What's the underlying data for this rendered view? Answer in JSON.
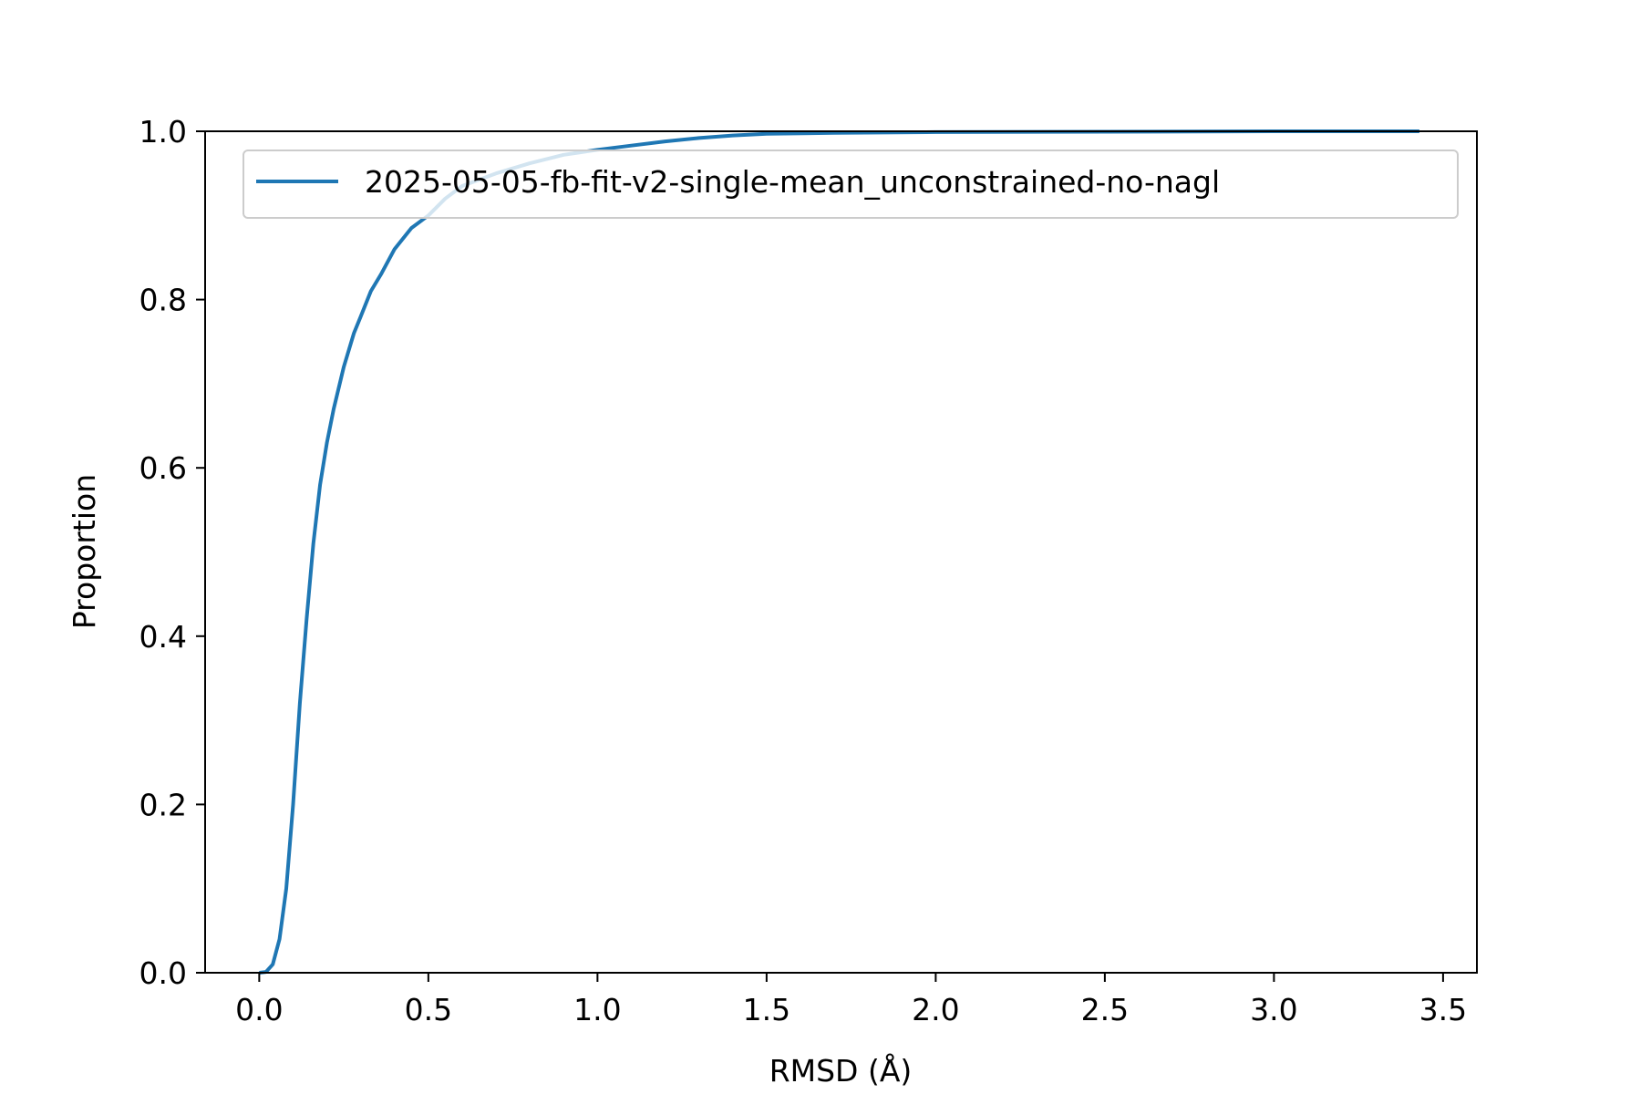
{
  "chart_data": {
    "type": "line",
    "title": "",
    "xlabel": "RMSD (Å)",
    "ylabel": "Proportion",
    "xlim": [
      -0.16,
      3.6
    ],
    "ylim": [
      0.0,
      1.0
    ],
    "xticks": [
      0.0,
      0.5,
      1.0,
      1.5,
      2.0,
      2.5,
      3.0,
      3.5
    ],
    "xtick_labels": [
      "0.0",
      "0.5",
      "1.0",
      "1.5",
      "2.0",
      "2.5",
      "3.0",
      "3.5"
    ],
    "yticks": [
      0.0,
      0.2,
      0.4,
      0.6,
      0.8,
      1.0
    ],
    "ytick_labels": [
      "0.0",
      "0.2",
      "0.4",
      "0.6",
      "0.8",
      "1.0"
    ],
    "grid": false,
    "legend_position": "top-right",
    "series": [
      {
        "name": "2025-05-05-fb-fit-v2-single-mean_unconstrained-no-nagl",
        "color": "#1f77b4",
        "x": [
          0.0,
          0.02,
          0.04,
          0.06,
          0.08,
          0.1,
          0.12,
          0.14,
          0.16,
          0.18,
          0.2,
          0.22,
          0.25,
          0.28,
          0.3,
          0.33,
          0.36,
          0.4,
          0.45,
          0.5,
          0.55,
          0.6,
          0.7,
          0.8,
          0.9,
          1.0,
          1.1,
          1.2,
          1.3,
          1.4,
          1.5,
          1.7,
          2.0,
          2.5,
          3.0,
          3.43
        ],
        "y": [
          0.0,
          0.001,
          0.01,
          0.04,
          0.1,
          0.2,
          0.32,
          0.42,
          0.51,
          0.58,
          0.63,
          0.67,
          0.72,
          0.76,
          0.78,
          0.81,
          0.83,
          0.86,
          0.885,
          0.9,
          0.92,
          0.935,
          0.95,
          0.962,
          0.972,
          0.978,
          0.983,
          0.988,
          0.992,
          0.995,
          0.997,
          0.998,
          0.999,
          0.9995,
          1.0,
          1.0
        ]
      }
    ]
  }
}
